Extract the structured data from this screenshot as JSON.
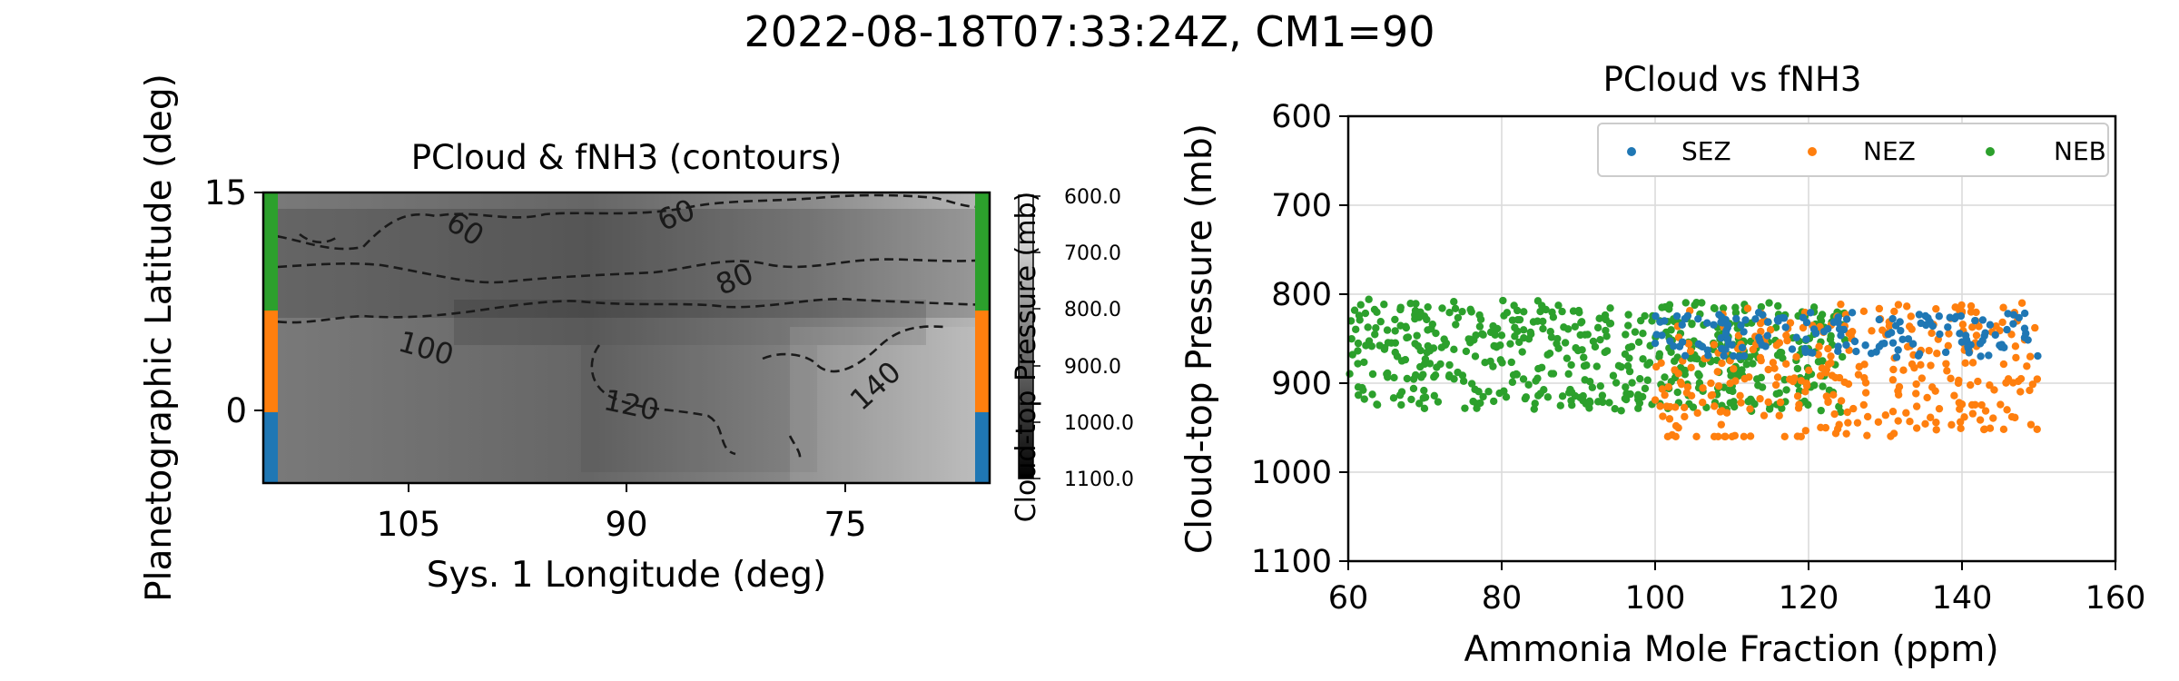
{
  "figure": {
    "suptitle": "2022-08-18T07:33:24Z, CM1=90"
  },
  "map_panel": {
    "title": "PCloud & fNH3 (contours)",
    "xlabel": "Sys. 1 Longitude (deg)",
    "ylabel": "Planetographic Latitude (deg)",
    "xlim": [
      115,
      66
    ],
    "ylim": [
      -5,
      15
    ],
    "xticks": [
      "105",
      "90",
      "75"
    ],
    "yticks": [
      "15",
      "0"
    ],
    "contour_labels": [
      "60",
      "60",
      "80",
      "100",
      "120",
      "140"
    ],
    "band_colors": {
      "NEB": "#2ca02c",
      "NEZ": "#ff7f0e",
      "SEZ": "#1f77b4"
    }
  },
  "colorbar": {
    "label": "Cloud-top Pressure (mb)",
    "ticks": [
      "600.0",
      "700.0",
      "800.0",
      "900.0",
      "1000.0",
      "1100.0"
    ]
  },
  "chart_data": {
    "type": "scatter",
    "title": "PCloud vs fNH3",
    "xlabel": "Ammonia Mole Fraction (ppm)",
    "ylabel": "Cloud-top Pressure (mb)",
    "xlim": [
      60,
      160
    ],
    "ylim": [
      1100,
      600
    ],
    "xticks": [
      "60",
      "80",
      "100",
      "120",
      "140",
      "160"
    ],
    "yticks": [
      "600",
      "700",
      "800",
      "900",
      "1000",
      "1100"
    ],
    "grid": true,
    "legend_position": "top-right",
    "series": [
      {
        "name": "SEZ",
        "color": "#1f77b4",
        "x_range": [
          100,
          150
        ],
        "y_range": [
          820,
          880
        ],
        "points": 160
      },
      {
        "name": "NEZ",
        "color": "#ff7f0e",
        "x_range": [
          100,
          150
        ],
        "y_range": [
          780,
          960
        ],
        "points": 320
      },
      {
        "name": "NEB",
        "color": "#2ca02c",
        "x_range": [
          60,
          125
        ],
        "y_range": [
          805,
          950
        ],
        "points": 560
      }
    ]
  }
}
